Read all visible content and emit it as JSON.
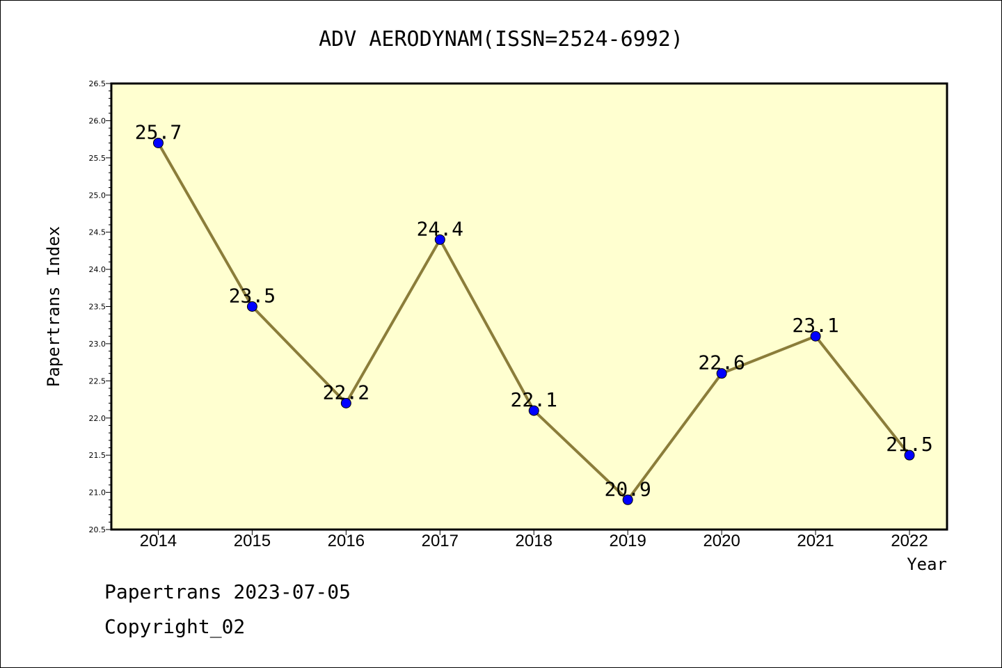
{
  "chart_data": {
    "type": "line",
    "title": "ADV AERODYNAM(ISSN=2524-6992)",
    "xlabel": "Year",
    "ylabel": "Papertrans Index",
    "categories": [
      "2014",
      "2015",
      "2016",
      "2017",
      "2018",
      "2019",
      "2020",
      "2021",
      "2022"
    ],
    "series": [
      {
        "values": [
          25.7,
          23.5,
          22.2,
          24.4,
          22.1,
          20.9,
          22.6,
          23.1,
          21.5
        ],
        "labels": [
          "25.7",
          "23.5",
          "22.2",
          "24.4",
          "22.1",
          "20.9",
          "22.6",
          "23.1",
          "21.5"
        ]
      }
    ],
    "ylim": [
      20.5,
      26.5
    ],
    "yticks": [
      "20.5",
      "21.0",
      "21.5",
      "22.0",
      "22.5",
      "23.0",
      "23.5",
      "24.0",
      "24.5",
      "25.0",
      "25.5",
      "26.0",
      "26.5"
    ],
    "grid": false,
    "legend": "none",
    "colors": {
      "plot_background": "#ffffd0",
      "line": "#8b7d3a",
      "marker": "#0000ff"
    }
  },
  "footer": {
    "line1": "Papertrans 2023-07-05",
    "line2": "Copyright_02"
  }
}
